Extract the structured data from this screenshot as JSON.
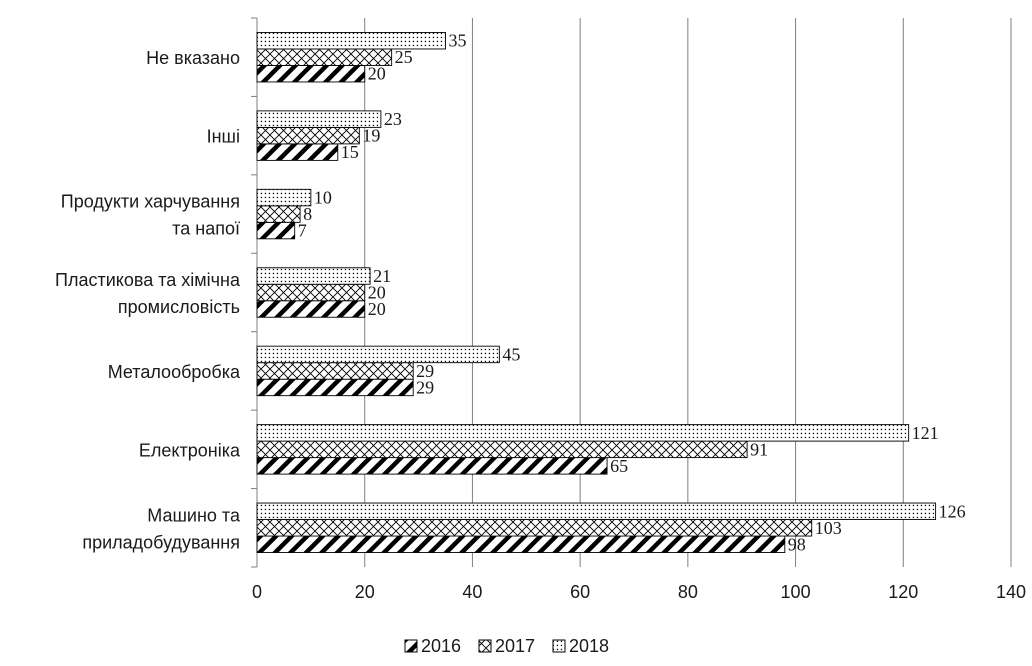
{
  "chart_data": {
    "type": "bar",
    "orientation": "horizontal",
    "categories": [
      "Машино та\nприладобудування",
      "Електроніка",
      "Металообробка",
      "Пластикова та хімічна\nпромисловість",
      "Продукти харчування\nта напої",
      "Інші",
      "Не вказано"
    ],
    "series": [
      {
        "name": "2016",
        "pattern": "diagonal-hatch",
        "values": [
          98,
          65,
          29,
          20,
          7,
          15,
          20
        ]
      },
      {
        "name": "2017",
        "pattern": "crosshatch",
        "values": [
          103,
          91,
          29,
          20,
          8,
          19,
          25
        ]
      },
      {
        "name": "2018",
        "pattern": "dots",
        "values": [
          126,
          121,
          45,
          21,
          10,
          23,
          35
        ]
      }
    ],
    "xlim": [
      0,
      140
    ],
    "xticks": [
      0,
      20,
      40,
      60,
      80,
      100,
      120,
      140
    ],
    "grid": "vertical",
    "legend_position": "bottom",
    "data_labels": true,
    "title": "",
    "xlabel": "",
    "ylabel": ""
  }
}
